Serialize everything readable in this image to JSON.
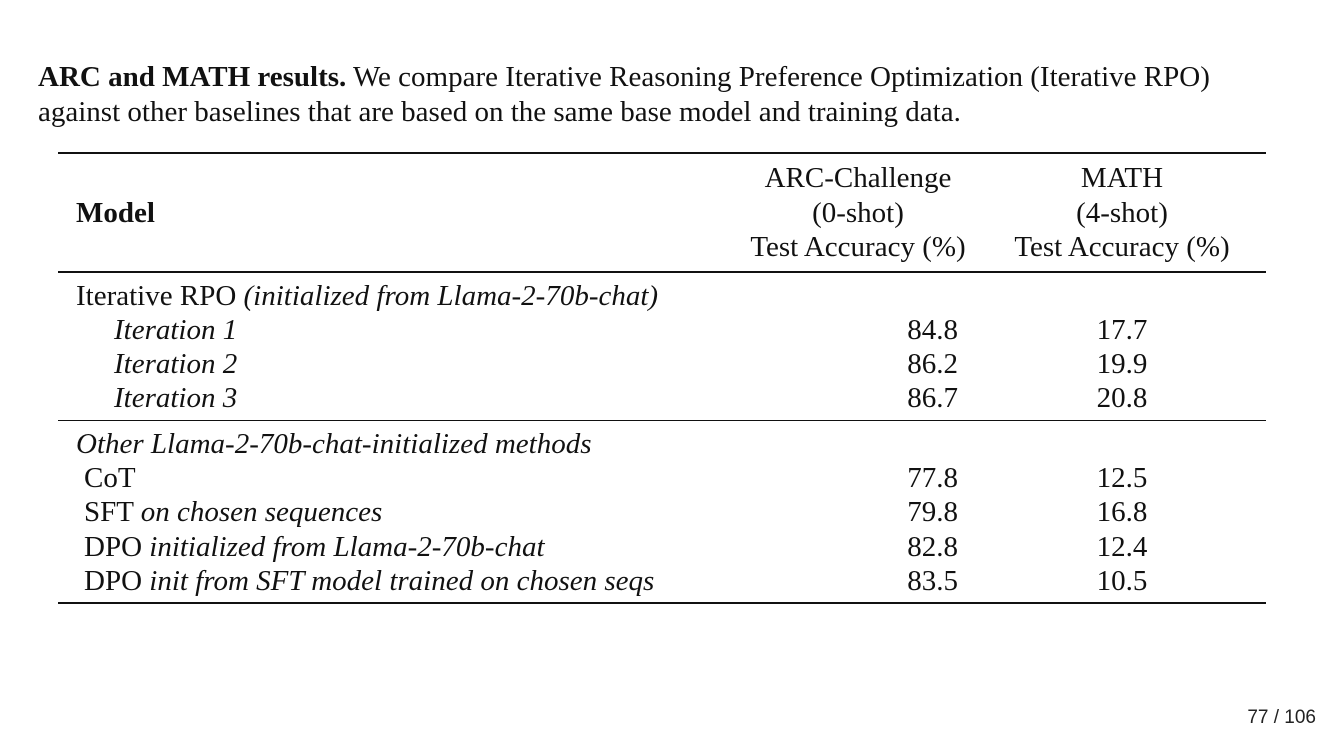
{
  "caption": {
    "bold_lead": "ARC and MATH results.",
    "text": " We compare Iterative Reasoning Preference Optimization (Iterative RPO) against other baselines that are based on the same base model and training data."
  },
  "table": {
    "headers": {
      "model": "Model",
      "arc": {
        "line1": "ARC-Challenge",
        "line2": "(0-shot)",
        "line3": "Test Accuracy (%)"
      },
      "math": {
        "line1": "MATH",
        "line2": "(4-shot)",
        "line3": "Test Accuracy (%)"
      }
    },
    "group1": {
      "title_plain": "Iterative RPO ",
      "title_italic": "(initialized from Llama-2-70b-chat)",
      "rows": [
        {
          "name": "Iteration 1",
          "arc": "84.8",
          "math": "17.7"
        },
        {
          "name": "Iteration 2",
          "arc": "86.2",
          "math": "19.9"
        },
        {
          "name": "Iteration 3",
          "arc": "86.7",
          "math": "20.8"
        }
      ]
    },
    "group2": {
      "title": "Other Llama-2-70b-chat-initialized methods",
      "rows": [
        {
          "name_plain": "CoT",
          "name_italic": "",
          "arc": "77.8",
          "math": "12.5"
        },
        {
          "name_plain": "SFT ",
          "name_italic": "on chosen sequences",
          "arc": "79.8",
          "math": "16.8"
        },
        {
          "name_plain": "DPO ",
          "name_italic": "initialized from Llama-2-70b-chat",
          "arc": "82.8",
          "math": "12.4"
        },
        {
          "name_plain": "DPO ",
          "name_italic": "init from SFT model trained on chosen seqs",
          "arc": "83.5",
          "math": "10.5"
        }
      ]
    }
  },
  "page_number": "77 / 106"
}
